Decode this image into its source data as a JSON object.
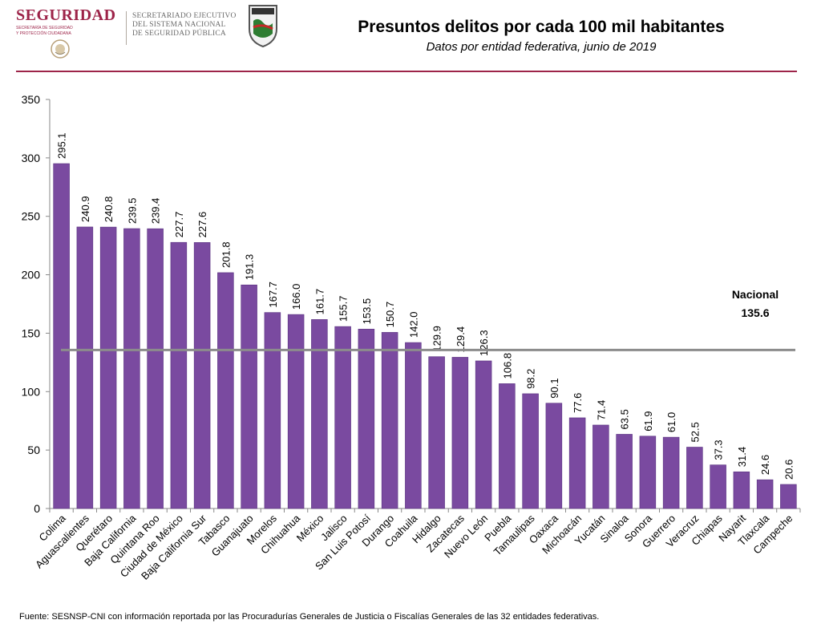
{
  "header": {
    "logo_seguridad": {
      "word": "SEGURIDAD",
      "sub_line1": "SECRETARÍA DE SEGURIDAD",
      "sub_line2": "Y PROTECCIÓN CIUDADANA"
    },
    "logo_sesnsp": {
      "line1": "SECRETARIADO EJECUTIVO",
      "line2": "DEL SISTEMA NACIONAL",
      "line3": "DE SEGURIDAD PÚBLICA"
    },
    "accent_color": "#9d2449"
  },
  "chart_data": {
    "type": "bar",
    "title": "Presuntos delitos por cada 100 mil habitantes",
    "subtitle": "Datos por entidad federativa, junio de 2019",
    "categories": [
      "Colima",
      "Aguascalientes",
      "Querétaro",
      "Baja California",
      "Quintana Roo",
      "Ciudad de México",
      "Baja California Sur",
      "Tabasco",
      "Guanajuato",
      "Morelos",
      "Chihuahua",
      "México",
      "Jalisco",
      "San Luis Potosí",
      "Durango",
      "Coahuila",
      "Hidalgo",
      "Zacatecas",
      "Nuevo León",
      "Puebla",
      "Tamaulipas",
      "Oaxaca",
      "Michoacán",
      "Yucatán",
      "Sinaloa",
      "Sonora",
      "Guerrero",
      "Veracruz",
      "Chiapas",
      "Nayarit",
      "Tlaxcala",
      "Campeche"
    ],
    "values": [
      295.1,
      240.9,
      240.8,
      239.5,
      239.4,
      227.7,
      227.6,
      201.8,
      191.3,
      167.7,
      166.0,
      161.7,
      155.7,
      153.5,
      150.7,
      142.0,
      129.9,
      129.4,
      126.3,
      106.8,
      98.2,
      90.1,
      77.6,
      71.4,
      63.5,
      61.9,
      61.0,
      52.5,
      37.3,
      31.4,
      24.6,
      20.6
    ],
    "value_labels": [
      "295.1",
      "240.9",
      "240.8",
      "239.5",
      "239.4",
      "227.7",
      "227.6",
      "201.8",
      "191.3",
      "167.7",
      "166.0",
      "161.7",
      "155.7",
      "153.5",
      "150.7",
      "142.0",
      "129.9",
      "129.4",
      "126.3",
      "106.8",
      "98.2",
      "90.1",
      "77.6",
      "71.4",
      "63.5",
      "61.9",
      "61.0",
      "52.5",
      "37.3",
      "31.4",
      "24.6",
      "20.6"
    ],
    "ylim": [
      0,
      350
    ],
    "yticks": [
      0,
      50,
      100,
      150,
      200,
      250,
      300,
      350
    ],
    "reference_line": {
      "label": "Nacional",
      "value": 135.6,
      "value_label": "135.6"
    },
    "bar_color": "#7a4aa0",
    "reference_line_color": "#8c8c8c",
    "grid": false,
    "legend": "none"
  },
  "source": "Fuente: SESNSP-CNI con información reportada por las Procuradurías Generales de Justicia o Fiscalías Generales de las 32 entidades federativas."
}
